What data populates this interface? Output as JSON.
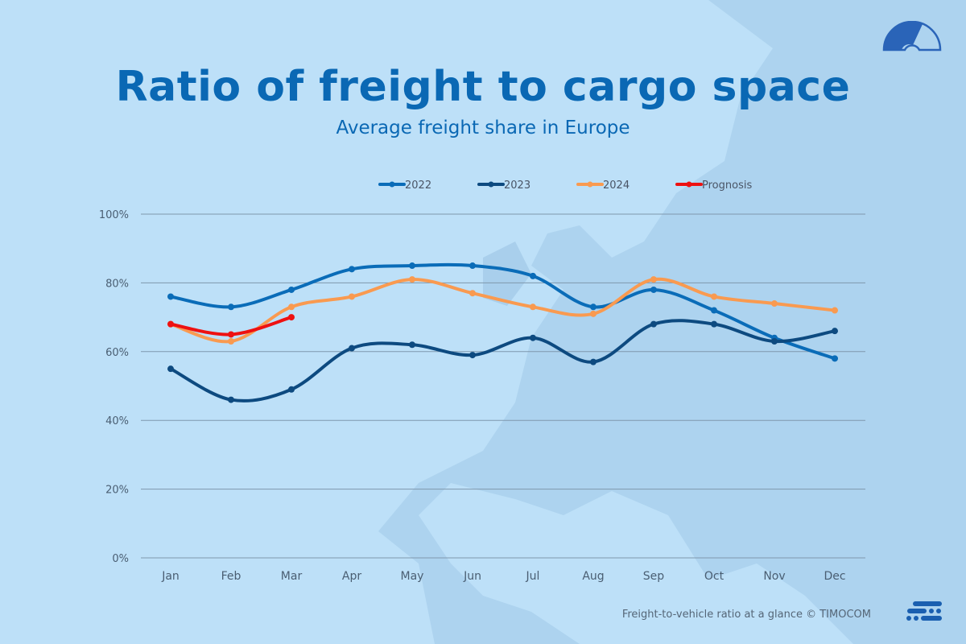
{
  "header": {
    "title": "Ratio of freight to cargo space",
    "subtitle": "Average freight share in Europe"
  },
  "footer": {
    "caption": "Freight-to-vehicle ratio at a glance © TIMOCOM"
  },
  "icons": {
    "top_right": "gauge-icon",
    "bottom_right": "timocom-logo-icon"
  },
  "chart_data": {
    "type": "line",
    "categories": [
      "Jan",
      "Feb",
      "Mar",
      "Apr",
      "May",
      "Jun",
      "Jul",
      "Aug",
      "Sep",
      "Oct",
      "Nov",
      "Dec"
    ],
    "y_ticks": [
      "0%",
      "20%",
      "40%",
      "60%",
      "80%",
      "100%"
    ],
    "ylim": [
      0,
      100
    ],
    "grid": "horizontal",
    "legend_position": "top",
    "smooth": true,
    "series": [
      {
        "name": "2022",
        "color": "#0a6cb8",
        "values": [
          76,
          73,
          78,
          84,
          85,
          85,
          82,
          73,
          78,
          72,
          64,
          58
        ]
      },
      {
        "name": "2023",
        "color": "#0d4a80",
        "values": [
          55,
          46,
          49,
          61,
          62,
          59,
          64,
          57,
          68,
          68,
          63,
          66
        ]
      },
      {
        "name": "2024",
        "color": "#f99a50",
        "values": [
          68,
          63,
          73,
          76,
          81,
          77,
          73,
          71,
          81,
          76,
          74,
          72
        ]
      },
      {
        "name": "Prognosis",
        "color": "#ee1111",
        "values": [
          68,
          65,
          70,
          null,
          null,
          null,
          null,
          null,
          null,
          null,
          null,
          null
        ]
      }
    ]
  }
}
